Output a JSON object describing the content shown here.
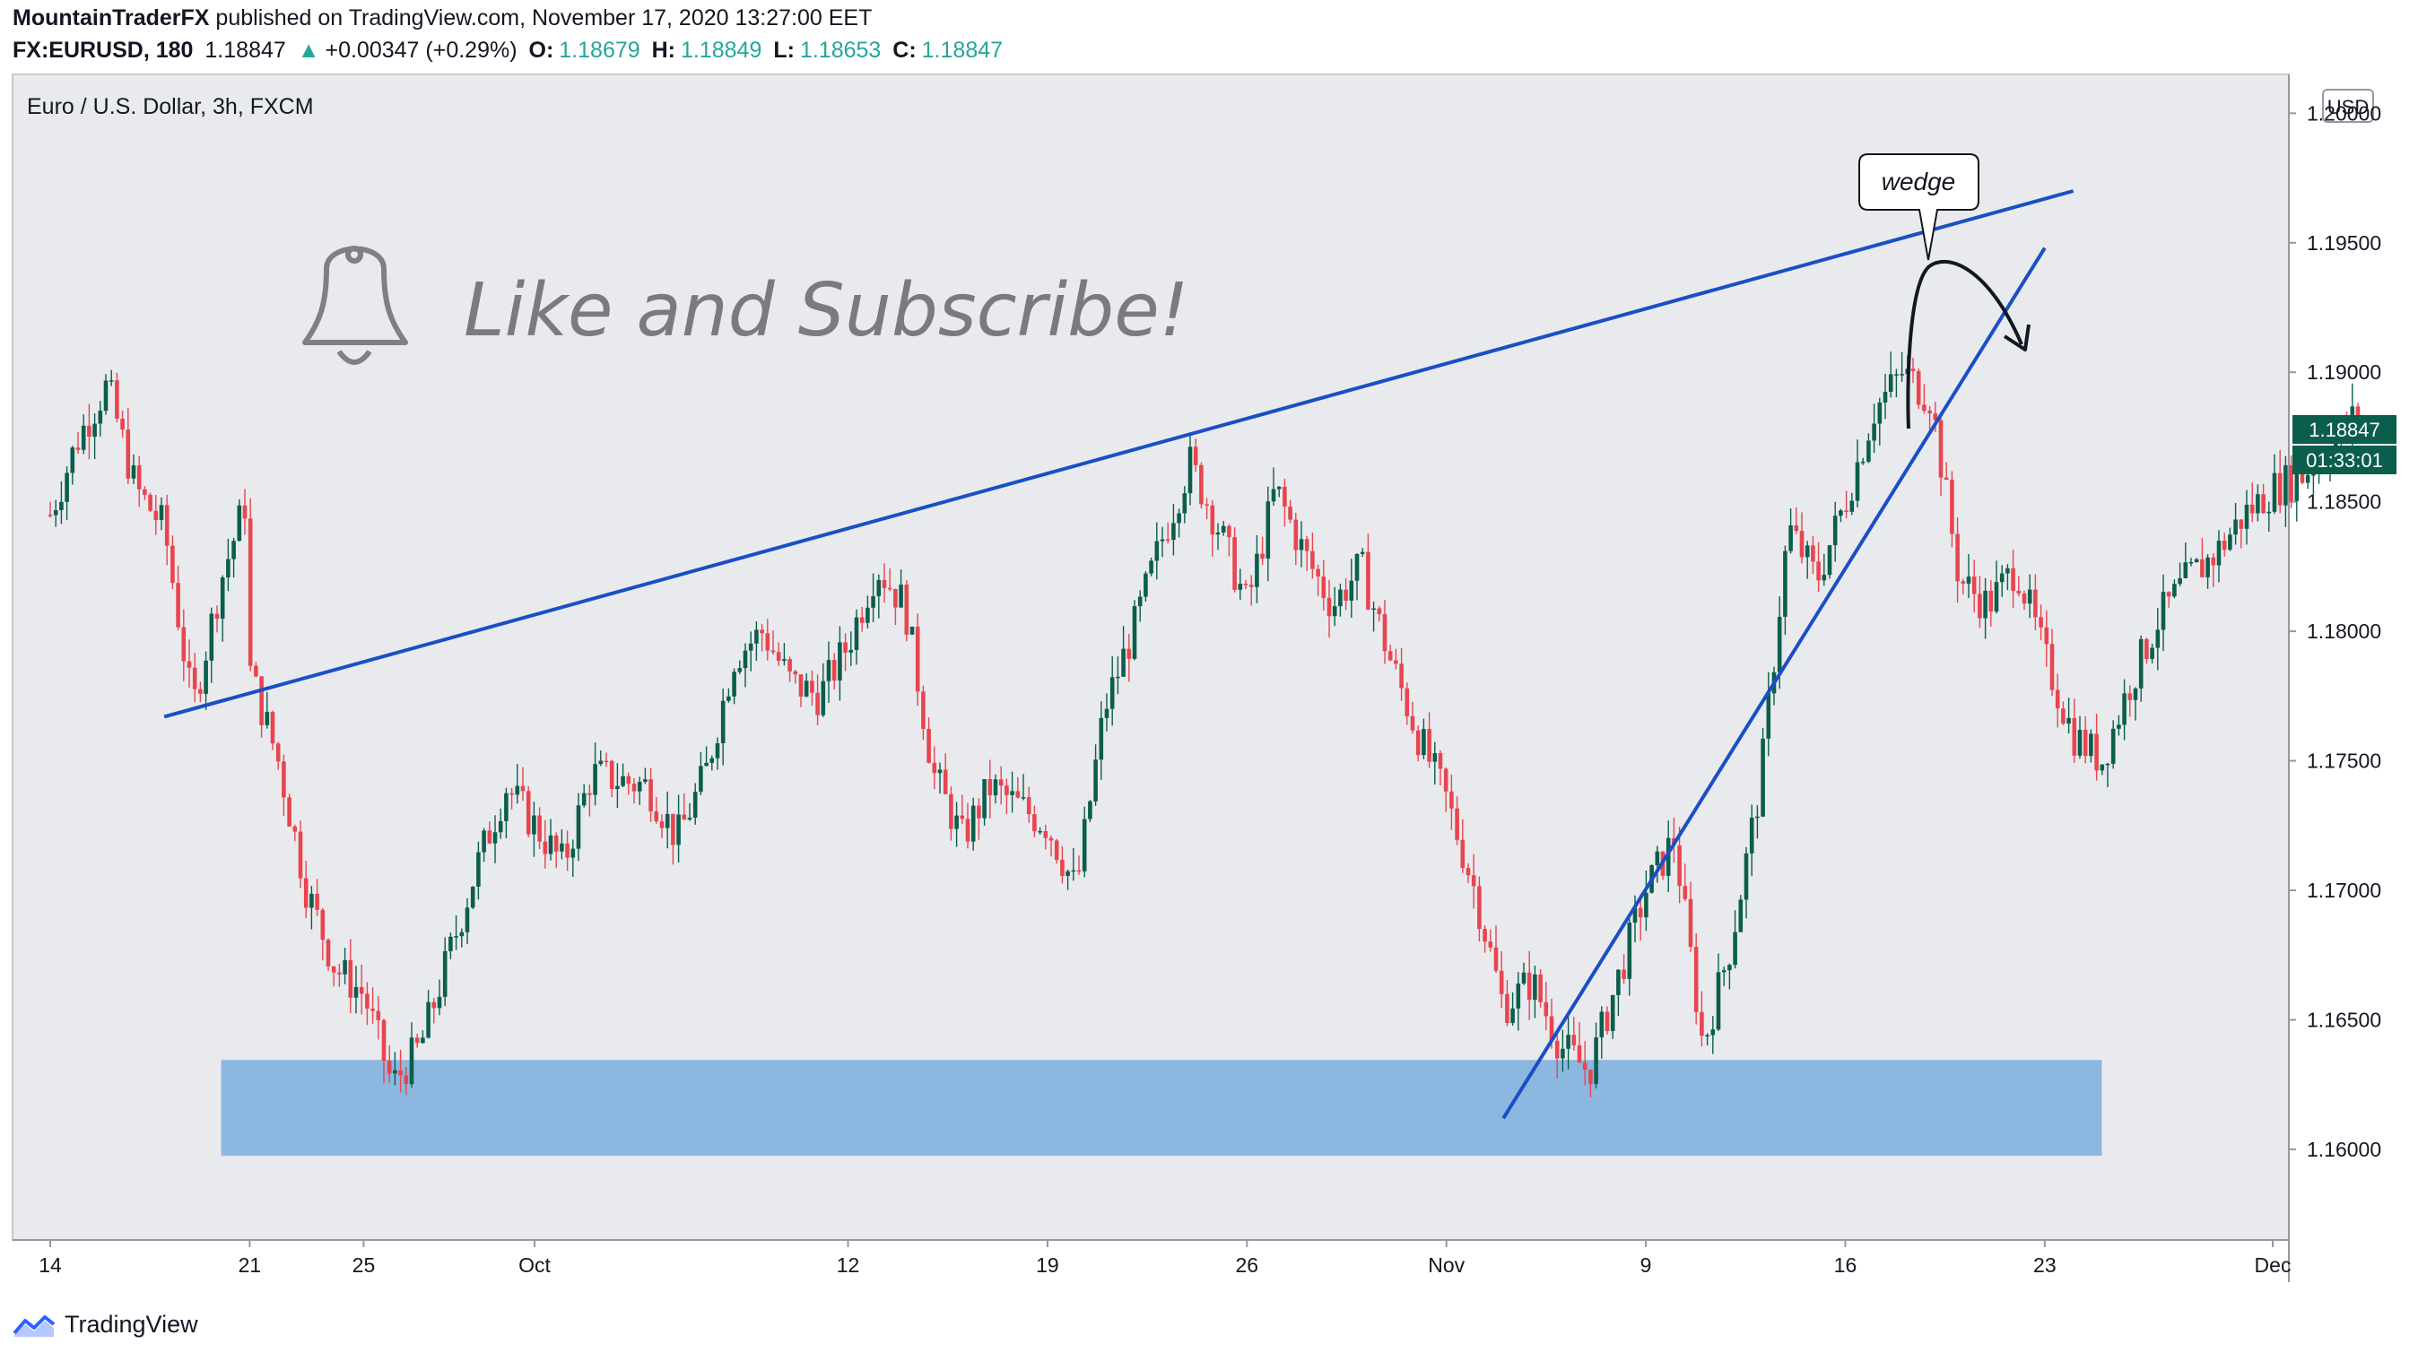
{
  "header": {
    "author": "MountainTraderFX",
    "published_text": "published on TradingView.com, November 17, 2020 13:27:00 EET",
    "symbol": "FX:EURUSD, 180",
    "last": "1.18847",
    "change_arrow": "▲",
    "change": "+0.00347 (+0.29%)",
    "o_label": "O:",
    "o": "1.18679",
    "h_label": "H:",
    "h": "1.18849",
    "l_label": "L:",
    "l": "1.18653",
    "c_label": "C:",
    "c": "1.18847"
  },
  "footer": {
    "brand": "TradingView",
    "logo_icon": "tradingview-logo-icon"
  },
  "colors": {
    "up": "#26a69a",
    "up_body": "#0b5e4c",
    "down": "#e8454f",
    "trendline": "#1a4fc4",
    "zone": "#7aaede",
    "plot_bg": "#e9eaee",
    "label_bg": "#0b5e4c"
  },
  "chart_data": {
    "type": "candlestick",
    "title": "Euro / U.S. Dollar, 3h, FXCM",
    "currency_label": "USD",
    "y_ticks": [
      "1.20000",
      "1.19500",
      "1.19000",
      "1.18500",
      "1.18000",
      "1.17500",
      "1.17000",
      "1.16500",
      "1.16000"
    ],
    "ylim": [
      1.1565,
      1.2015
    ],
    "x_ticks": [
      "14",
      "21",
      "25",
      "Oct",
      "12",
      "19",
      "26",
      "Nov",
      "9",
      "16",
      "23",
      "Dec"
    ],
    "price_label": "1.18847",
    "countdown_label": "01:33:01",
    "close_path": [
      {
        "date": "2020-09-14",
        "price": 1.1845
      },
      {
        "date": "2020-09-15",
        "price": 1.1875
      },
      {
        "date": "2020-09-16",
        "price": 1.1895
      },
      {
        "date": "2020-09-17",
        "price": 1.1855
      },
      {
        "date": "2020-09-18",
        "price": 1.184
      },
      {
        "date": "2020-09-19",
        "price": 1.177
      },
      {
        "date": "2020-09-20",
        "price": 1.182
      },
      {
        "date": "2020-09-21",
        "price": 1.1855
      },
      {
        "date": "2020-09-21",
        "price": 1.1785
      },
      {
        "date": "2020-09-22",
        "price": 1.175
      },
      {
        "date": "2020-09-23",
        "price": 1.17
      },
      {
        "date": "2020-09-24",
        "price": 1.167
      },
      {
        "date": "2020-09-25",
        "price": 1.166
      },
      {
        "date": "2020-09-26",
        "price": 1.1625
      },
      {
        "date": "2020-09-27",
        "price": 1.164
      },
      {
        "date": "2020-09-28",
        "price": 1.1675
      },
      {
        "date": "2020-09-29",
        "price": 1.171
      },
      {
        "date": "2020-09-30",
        "price": 1.174
      },
      {
        "date": "2020-10-01",
        "price": 1.1725
      },
      {
        "date": "2020-10-02",
        "price": 1.171
      },
      {
        "date": "2020-10-03",
        "price": 1.1745
      },
      {
        "date": "2020-10-05",
        "price": 1.174
      },
      {
        "date": "2020-10-06",
        "price": 1.172
      },
      {
        "date": "2020-10-07",
        "price": 1.1745
      },
      {
        "date": "2020-10-08",
        "price": 1.179
      },
      {
        "date": "2020-10-09",
        "price": 1.18
      },
      {
        "date": "2020-10-10",
        "price": 1.178
      },
      {
        "date": "2020-10-11",
        "price": 1.1775
      },
      {
        "date": "2020-10-12",
        "price": 1.1795
      },
      {
        "date": "2020-10-13",
        "price": 1.1825
      },
      {
        "date": "2020-10-14",
        "price": 1.181
      },
      {
        "date": "2020-10-15",
        "price": 1.1745
      },
      {
        "date": "2020-10-16",
        "price": 1.172
      },
      {
        "date": "2020-10-17",
        "price": 1.174
      },
      {
        "date": "2020-10-19",
        "price": 1.1725
      },
      {
        "date": "2020-10-20",
        "price": 1.17
      },
      {
        "date": "2020-10-21",
        "price": 1.177
      },
      {
        "date": "2020-10-22",
        "price": 1.18
      },
      {
        "date": "2020-10-23",
        "price": 1.1835
      },
      {
        "date": "2020-10-24",
        "price": 1.1865
      },
      {
        "date": "2020-10-25",
        "price": 1.184
      },
      {
        "date": "2020-10-26",
        "price": 1.181
      },
      {
        "date": "2020-10-27",
        "price": 1.1855
      },
      {
        "date": "2020-10-28",
        "price": 1.183
      },
      {
        "date": "2020-10-29",
        "price": 1.181
      },
      {
        "date": "2020-10-30",
        "price": 1.1825
      },
      {
        "date": "2020-10-31",
        "price": 1.179
      },
      {
        "date": "2020-11-01",
        "price": 1.176
      },
      {
        "date": "2020-11-02",
        "price": 1.1735
      },
      {
        "date": "2020-11-03",
        "price": 1.17
      },
      {
        "date": "2020-11-04",
        "price": 1.1655
      },
      {
        "date": "2020-11-05",
        "price": 1.1665
      },
      {
        "date": "2020-11-06",
        "price": 1.164
      },
      {
        "date": "2020-11-07",
        "price": 1.163
      },
      {
        "date": "2020-11-08",
        "price": 1.1665
      },
      {
        "date": "2020-11-09",
        "price": 1.17
      },
      {
        "date": "2020-11-10",
        "price": 1.172
      },
      {
        "date": "2020-11-11",
        "price": 1.164
      },
      {
        "date": "2020-11-12",
        "price": 1.168
      },
      {
        "date": "2020-11-13",
        "price": 1.174
      },
      {
        "date": "2020-11-14",
        "price": 1.184
      },
      {
        "date": "2020-11-15",
        "price": 1.182
      },
      {
        "date": "2020-11-16",
        "price": 1.185
      },
      {
        "date": "2020-11-17",
        "price": 1.1885
      },
      {
        "date": "2020-11-18",
        "price": 1.19
      },
      {
        "date": "2020-11-19",
        "price": 1.189
      },
      {
        "date": "2020-11-20",
        "price": 1.182
      },
      {
        "date": "2020-11-21",
        "price": 1.181
      },
      {
        "date": "2020-11-22",
        "price": 1.1825
      },
      {
        "date": "2020-11-23",
        "price": 1.179
      },
      {
        "date": "2020-11-24",
        "price": 1.176
      },
      {
        "date": "2020-11-25",
        "price": 1.175
      },
      {
        "date": "2020-11-26",
        "price": 1.178
      },
      {
        "date": "2020-11-27",
        "price": 1.1805
      },
      {
        "date": "2020-11-28",
        "price": 1.182
      },
      {
        "date": "2020-11-29",
        "price": 1.183
      },
      {
        "date": "2020-11-30",
        "price": 1.1845
      },
      {
        "date": "2020-12-01",
        "price": 1.1855
      },
      {
        "date": "2020-12-02",
        "price": 1.186
      },
      {
        "date": "2020-12-03",
        "price": 1.187
      },
      {
        "date": "2020-12-04",
        "price": 1.18847
      }
    ],
    "annotations": {
      "wedge_label": "wedge",
      "cta_text": "Like and Subscribe!",
      "cta_icon": "bell-icon",
      "upper_trendline": [
        {
          "date": "2020-09-18",
          "price": 1.1767
        },
        {
          "date": "2020-11-24",
          "price": 1.197
        }
      ],
      "lower_trendline": [
        {
          "date": "2020-11-04",
          "price": 1.1612
        },
        {
          "date": "2020-11-23",
          "price": 1.1948
        }
      ],
      "support_zone": {
        "from_date": "2020-09-20",
        "to_date": "2020-11-25",
        "top": 1.16345,
        "bottom": 1.15975
      },
      "projection_arrow": "down from wedge top"
    }
  }
}
